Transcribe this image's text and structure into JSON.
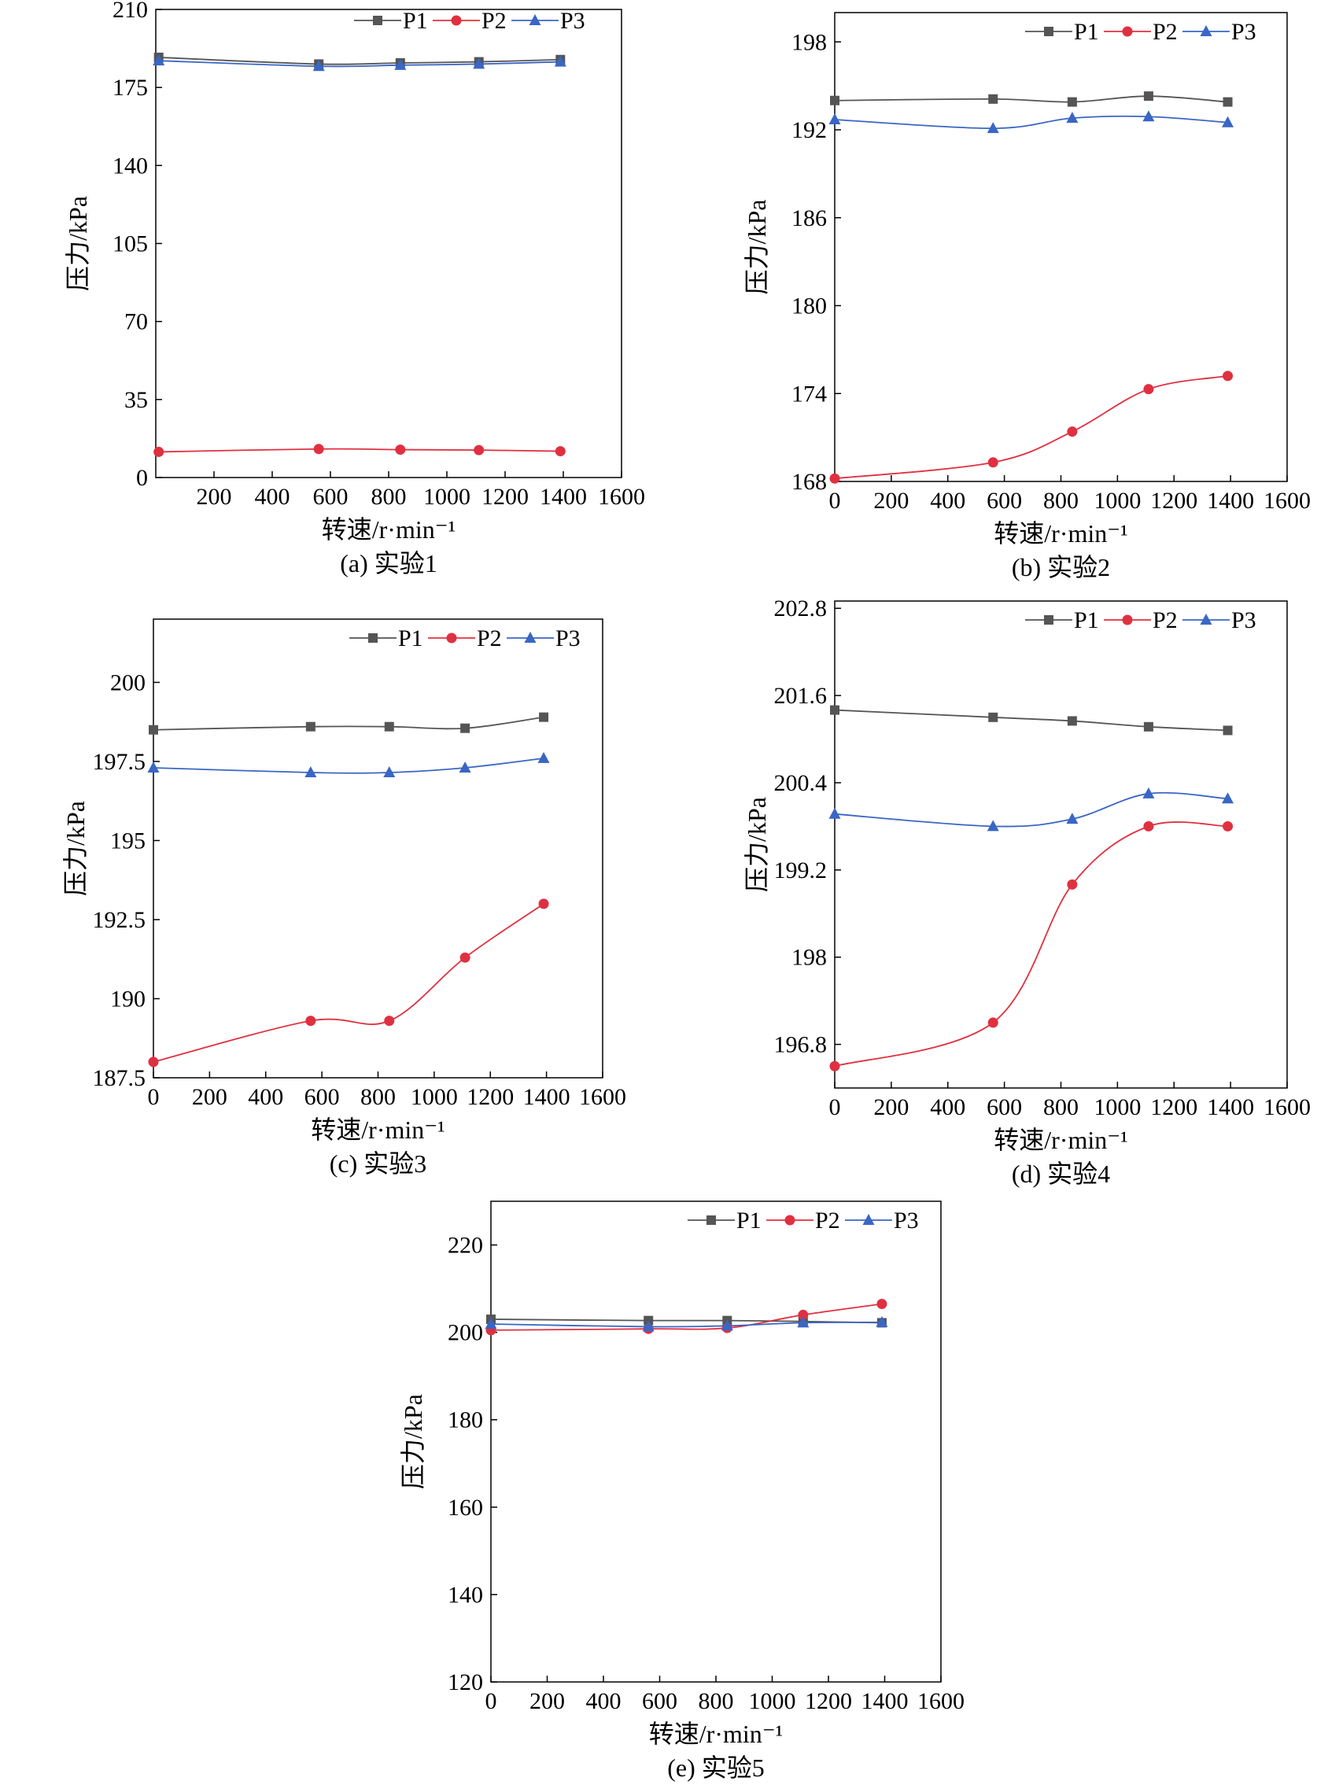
{
  "figure": {
    "series_colors": {
      "P1": "#555555",
      "P2": "#e03040",
      "P3": "#3a66c4"
    },
    "series_markers": {
      "P1": "square",
      "P2": "circle",
      "P3": "triangle"
    }
  },
  "chart_data": [
    {
      "type": "line",
      "caption": "(a) 实验1",
      "xlabel": "转速/r·min⁻¹",
      "ylabel": "压力/kPa",
      "xlim": [
        0,
        1600
      ],
      "ylim": [
        0,
        210
      ],
      "xticks": [
        "200",
        "400",
        "600",
        "800",
        "1000",
        "1200",
        "1400",
        "1600"
      ],
      "yticks": [
        "0",
        "35",
        "70",
        "105",
        "140",
        "175",
        "210"
      ],
      "legend": "top-right",
      "x": [
        10,
        560,
        840,
        1110,
        1390
      ],
      "series": [
        {
          "name": "P1",
          "values": [
            188.5,
            185.5,
            186,
            186.5,
            187.5
          ]
        },
        {
          "name": "P2",
          "values": [
            11.5,
            12.8,
            12.5,
            12.3,
            11.8
          ]
        },
        {
          "name": "P3",
          "values": [
            187,
            184.5,
            185,
            185.5,
            186.5
          ]
        }
      ]
    },
    {
      "type": "line",
      "caption": "(b) 实验2",
      "xlabel": "转速/r·min⁻¹",
      "ylabel": "压力/kPa",
      "xlim": [
        0,
        1600
      ],
      "ylim": [
        168,
        200
      ],
      "xticks": [
        "0",
        "200",
        "400",
        "600",
        "800",
        "1000",
        "1200",
        "1400",
        "1600"
      ],
      "yticks": [
        "168",
        "174",
        "180",
        "186",
        "192",
        "198"
      ],
      "legend": "top-right",
      "x": [
        0,
        560,
        840,
        1110,
        1390
      ],
      "series": [
        {
          "name": "P1",
          "values": [
            194,
            194.1,
            193.9,
            194.3,
            193.9
          ]
        },
        {
          "name": "P2",
          "values": [
            168.2,
            169.3,
            171.4,
            174.3,
            175.2
          ]
        },
        {
          "name": "P3",
          "values": [
            192.7,
            192.1,
            192.8,
            192.9,
            192.5
          ]
        }
      ]
    },
    {
      "type": "line",
      "caption": "(c) 实验3",
      "xlabel": "转速/r·min⁻¹",
      "ylabel": "压力/kPa",
      "xlim": [
        0,
        1600
      ],
      "ylim": [
        187.5,
        202
      ],
      "xticks": [
        "0",
        "200",
        "400",
        "600",
        "800",
        "1000",
        "1200",
        "1400",
        "1600"
      ],
      "yticks": [
        "187.5",
        "190",
        "192.5",
        "195",
        "197.5",
        "200"
      ],
      "legend": "top-right",
      "x": [
        0,
        560,
        840,
        1110,
        1390
      ],
      "series": [
        {
          "name": "P1",
          "values": [
            198.5,
            198.6,
            198.6,
            198.55,
            198.9
          ]
        },
        {
          "name": "P2",
          "values": [
            188,
            189.3,
            189.3,
            191.3,
            193
          ]
        },
        {
          "name": "P3",
          "values": [
            197.3,
            197.15,
            197.15,
            197.3,
            197.6
          ]
        }
      ]
    },
    {
      "type": "line",
      "caption": "(d) 实验4",
      "xlabel": "转速/r·min⁻¹",
      "ylabel": "压力/kPa",
      "xlim": [
        0,
        1600
      ],
      "ylim": [
        196.2,
        202.9
      ],
      "xticks": [
        "0",
        "200",
        "400",
        "600",
        "800",
        "1000",
        "1200",
        "1400",
        "1600"
      ],
      "yticks": [
        "196.8",
        "198",
        "199.2",
        "200.4",
        "201.6",
        "202.8"
      ],
      "legend": "top-right",
      "x": [
        0,
        560,
        840,
        1110,
        1390
      ],
      "series": [
        {
          "name": "P1",
          "values": [
            201.4,
            201.3,
            201.25,
            201.17,
            201.12
          ]
        },
        {
          "name": "P2",
          "values": [
            196.5,
            197.1,
            199.0,
            199.8,
            199.8
          ]
        },
        {
          "name": "P3",
          "values": [
            199.97,
            199.8,
            199.9,
            200.25,
            200.18
          ]
        }
      ]
    },
    {
      "type": "line",
      "caption": "(e) 实验5",
      "xlabel": "转速/r·min⁻¹",
      "ylabel": "压力/kPa",
      "xlim": [
        0,
        1600
      ],
      "ylim": [
        120,
        230
      ],
      "xticks": [
        "0",
        "200",
        "400",
        "600",
        "800",
        "1000",
        "1200",
        "1400",
        "1600"
      ],
      "yticks": [
        "120",
        "140",
        "160",
        "180",
        "200",
        "220"
      ],
      "legend": "top-right",
      "x": [
        0,
        560,
        840,
        1110,
        1390
      ],
      "series": [
        {
          "name": "P1",
          "values": [
            203,
            202.7,
            202.7,
            202.5,
            202.2
          ]
        },
        {
          "name": "P2",
          "values": [
            200.5,
            200.8,
            201,
            204,
            206.5
          ]
        },
        {
          "name": "P3",
          "values": [
            201.9,
            201.3,
            201.5,
            202.2,
            202.3
          ]
        }
      ]
    }
  ]
}
